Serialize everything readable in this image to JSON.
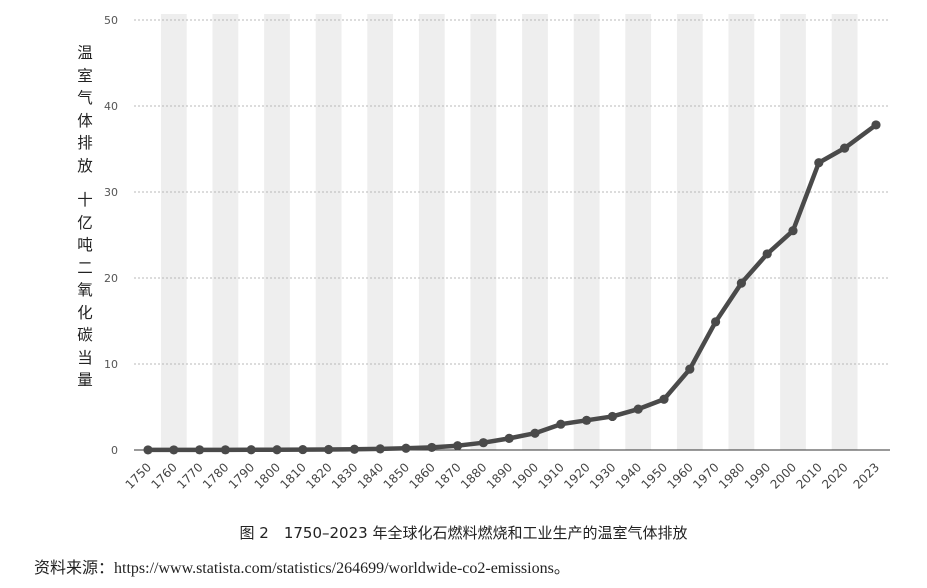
{
  "chart_data": {
    "type": "line",
    "ylabel_lines": [
      "温室气体排放",
      "十亿吨二氧化碳当量"
    ],
    "x": [
      "1750",
      "1760",
      "1770",
      "1780",
      "1790",
      "1800",
      "1810",
      "1820",
      "1830",
      "1840",
      "1850",
      "1860",
      "1870",
      "1880",
      "1890",
      "1900",
      "1910",
      "1920",
      "1930",
      "1940",
      "1950",
      "1960",
      "1970",
      "1980",
      "1990",
      "2000",
      "2010",
      "2020",
      "2023"
    ],
    "series": [
      {
        "values": [
          0.01,
          0.01,
          0.02,
          0.02,
          0.03,
          0.03,
          0.05,
          0.06,
          0.09,
          0.13,
          0.2,
          0.3,
          0.5,
          0.85,
          1.35,
          1.95,
          3.0,
          3.45,
          3.9,
          4.75,
          5.9,
          9.4,
          14.9,
          19.4,
          22.8,
          25.5,
          33.4,
          35.1,
          37.8
        ]
      }
    ],
    "yticks": [
      0,
      10,
      20,
      30,
      40,
      50
    ],
    "ylim": [
      0,
      50
    ],
    "grid": true,
    "line_color": "#4a4a4a",
    "band_color": "#eeeeee"
  },
  "caption": "图 2　1750–2023 年全球化石燃料燃烧和工业生产的温室气体排放",
  "source": "资料来源：https://www.statista.com/statistics/264699/worldwide-co2-emissions。"
}
